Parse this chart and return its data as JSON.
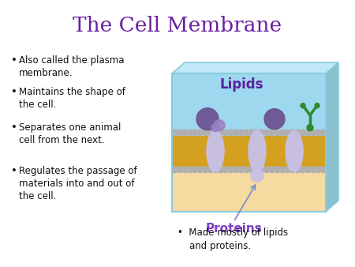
{
  "title": "The Cell Membrane",
  "title_color": "#6B1FA0",
  "title_fontsize": 19,
  "background_color": "#FFFFFF",
  "bullet_points_left": [
    "Also called the plasma\nmembrane.",
    "Maintains the shape of\nthe cell.",
    "Separates one animal\ncell from the next.",
    "Regulates the passage of\nmaterials into and out of\nthe cell."
  ],
  "bullet_fontsize": 8.5,
  "bullet_color": "#111111",
  "label_lipids": "Lipids",
  "label_lipids_color": "#5B1FA0",
  "label_proteins": "Proteins",
  "label_proteins_color": "#7B3FC7",
  "bottom_bullet": "Made mostly of lipids\nand proteins.",
  "diagram_box_color": "#9ED8EE",
  "diagram_bottom_color": "#F5DBA0",
  "lipid_gray": "#B0B0B0",
  "lipid_purple_dark": "#6B5090",
  "lipid_purple_light": "#9880C0",
  "protein_lavender": "#C8C0E8",
  "membrane_gold": "#D4A020",
  "annotation_line_color": "#7B8FC7",
  "green_receptor": "#2D8B2D",
  "box_edge_color": "#88CCDD",
  "box_top_color": "#C0E8F8",
  "box_right_color": "#88C0D0"
}
